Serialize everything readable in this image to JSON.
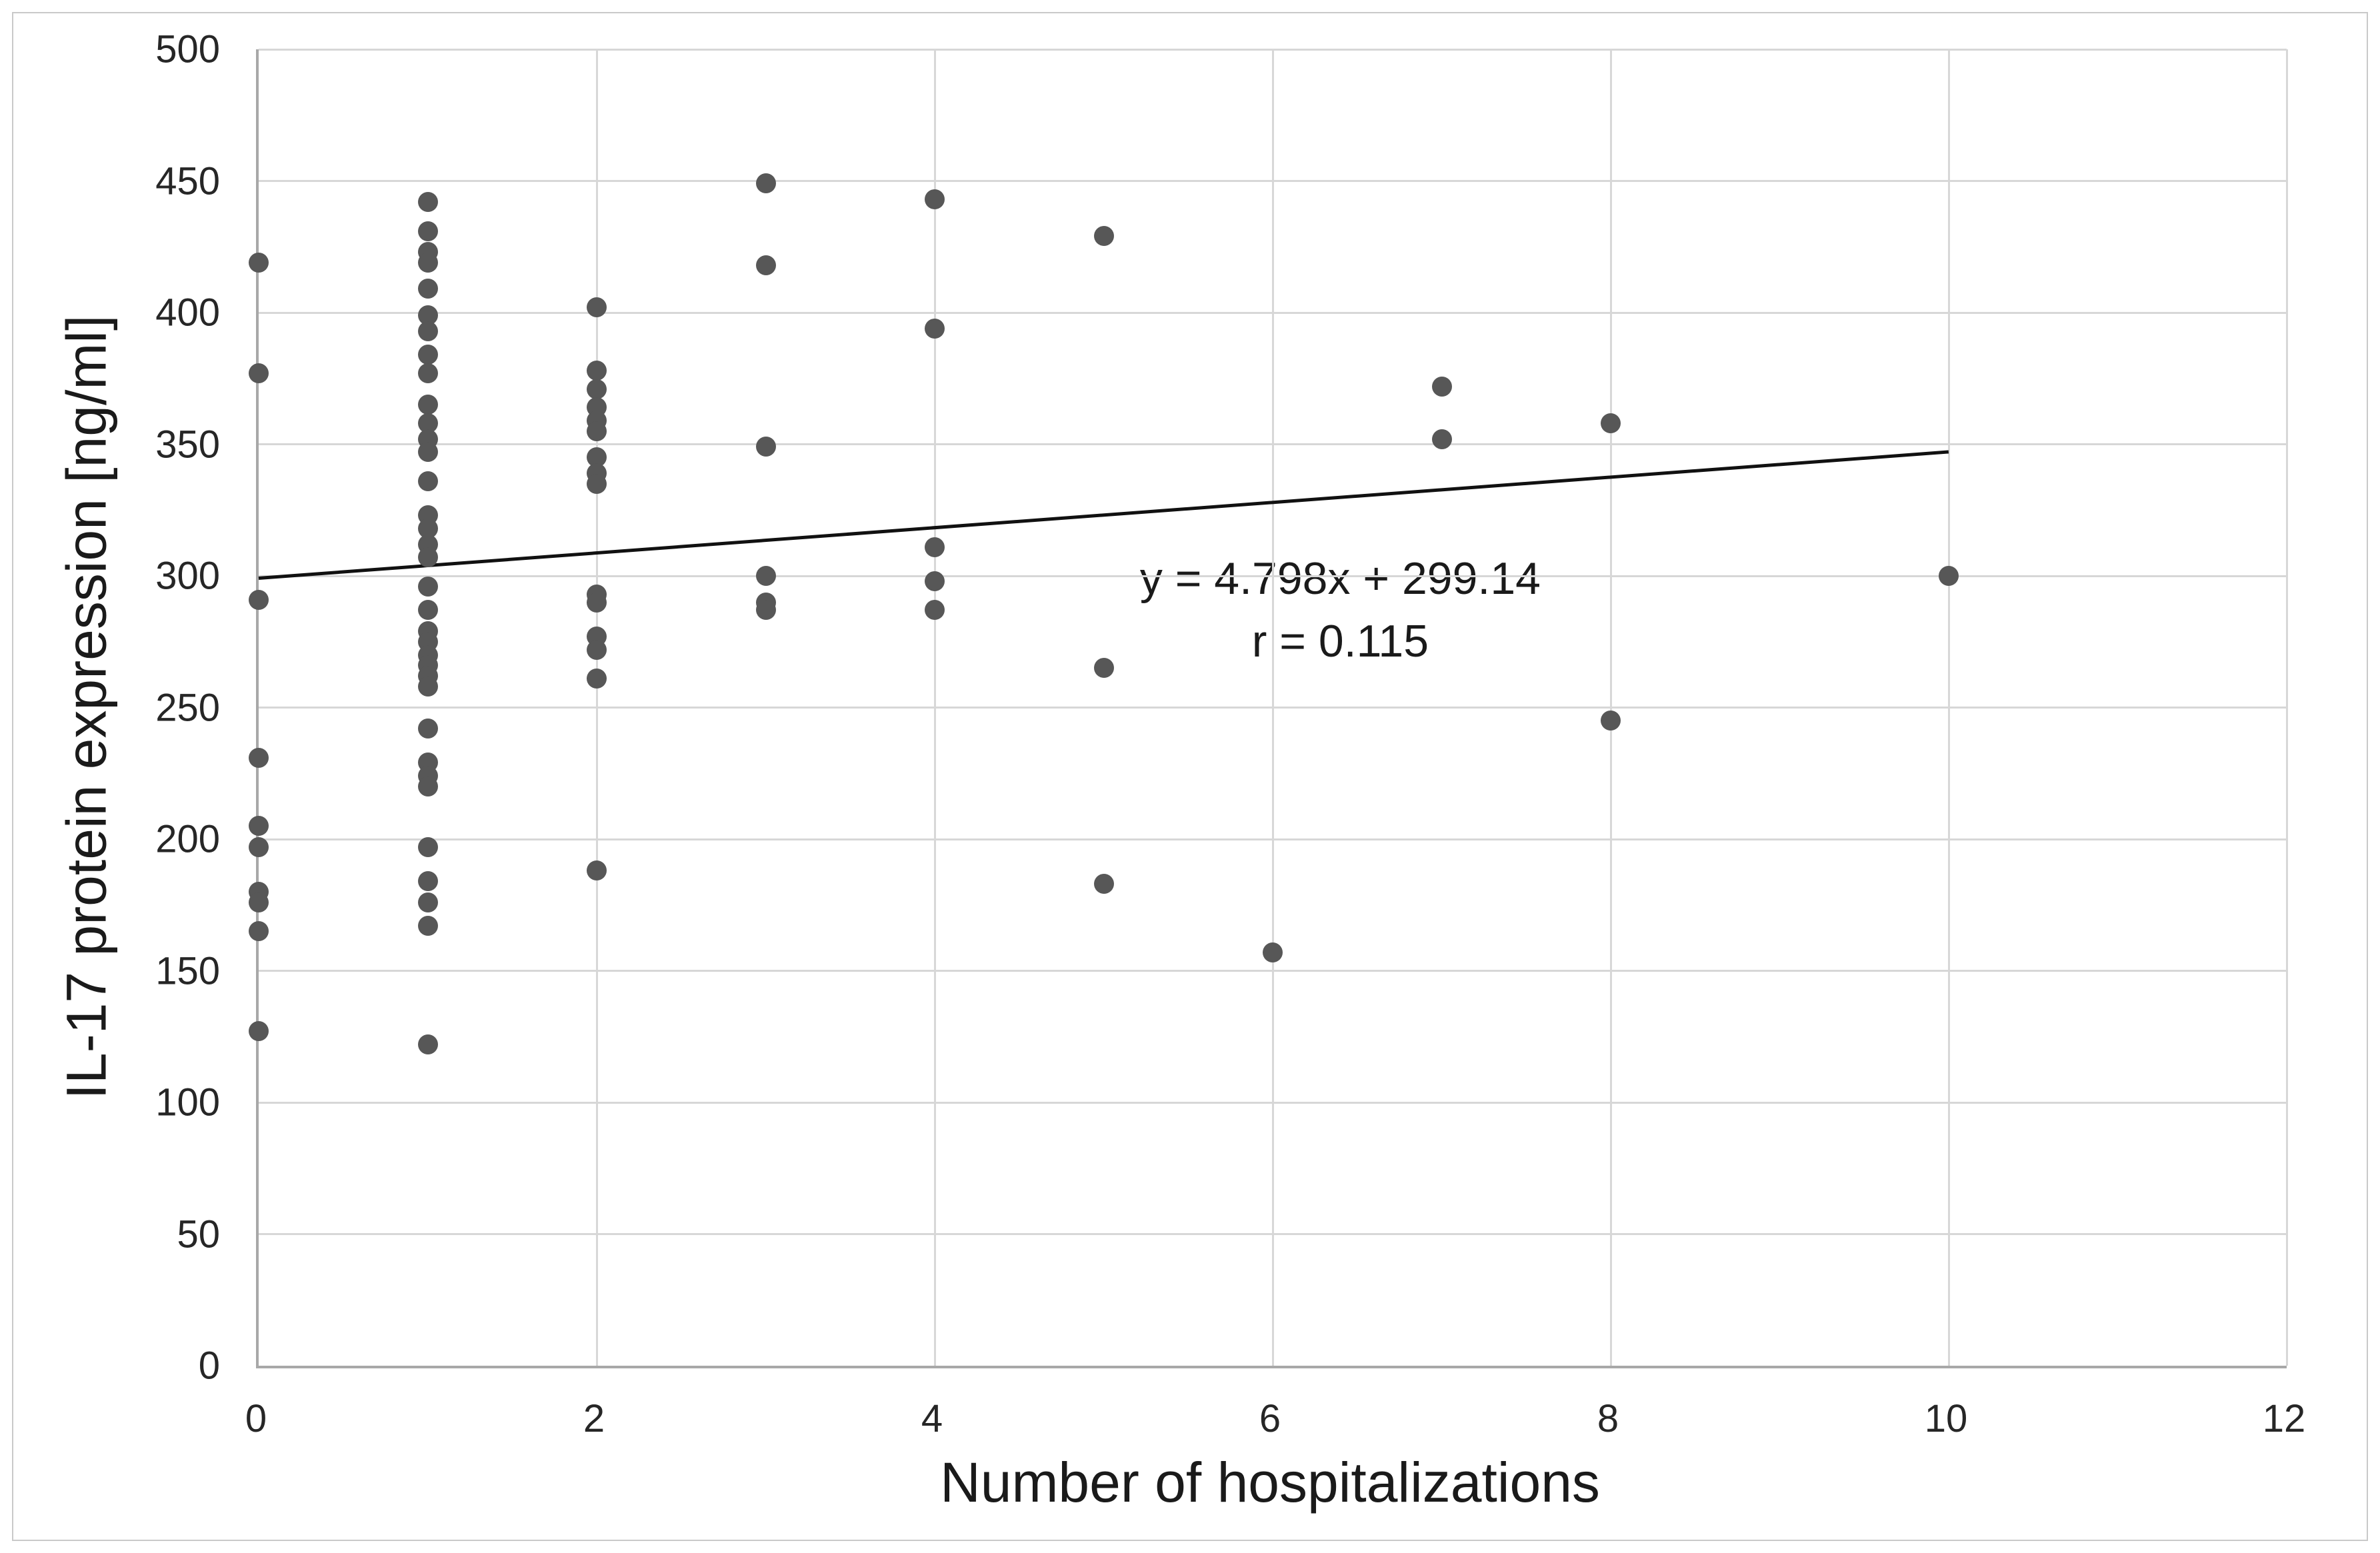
{
  "figure": {
    "background": "#ffffff",
    "border_color": "#c9c9c9",
    "gridline_color": "#d7d7d7",
    "axis_line_color": "#a8a8a8"
  },
  "chart_data": {
    "type": "scatter",
    "title": "",
    "xlabel": "Number of hospitalizations",
    "ylabel": "IL-17 protein expression [ng/ml]",
    "xlim": [
      0,
      12
    ],
    "ylim": [
      0,
      500
    ],
    "x_ticks": [
      0,
      2,
      4,
      6,
      8,
      10,
      12
    ],
    "y_ticks": [
      0,
      50,
      100,
      150,
      200,
      250,
      300,
      350,
      400,
      450,
      500
    ],
    "grid": true,
    "legend": "none",
    "point_color": "#575757",
    "trendline": {
      "slope": 4.798,
      "intercept": 299.14,
      "x_start": 0,
      "x_end": 10,
      "color": "#111111"
    },
    "annotation": {
      "line1": "y = 4.798x + 299.14",
      "line2": "r = 0.115",
      "anchor_x": 6.4,
      "anchor_y": 287
    },
    "points": [
      [
        0,
        419
      ],
      [
        0,
        377
      ],
      [
        0,
        291
      ],
      [
        0,
        231
      ],
      [
        0,
        205
      ],
      [
        0,
        197
      ],
      [
        0,
        180
      ],
      [
        0,
        176
      ],
      [
        0,
        165
      ],
      [
        0,
        127
      ],
      [
        1,
        442
      ],
      [
        1,
        431
      ],
      [
        1,
        423
      ],
      [
        1,
        419
      ],
      [
        1,
        409
      ],
      [
        1,
        399
      ],
      [
        1,
        393
      ],
      [
        1,
        384
      ],
      [
        1,
        377
      ],
      [
        1,
        365
      ],
      [
        1,
        358
      ],
      [
        1,
        352
      ],
      [
        1,
        347
      ],
      [
        1,
        336
      ],
      [
        1,
        323
      ],
      [
        1,
        318
      ],
      [
        1,
        312
      ],
      [
        1,
        307
      ],
      [
        1,
        296
      ],
      [
        1,
        287
      ],
      [
        1,
        279
      ],
      [
        1,
        275
      ],
      [
        1,
        270
      ],
      [
        1,
        266
      ],
      [
        1,
        262
      ],
      [
        1,
        258
      ],
      [
        1,
        242
      ],
      [
        1,
        229
      ],
      [
        1,
        224
      ],
      [
        1,
        220
      ],
      [
        1,
        197
      ],
      [
        1,
        184
      ],
      [
        1,
        176
      ],
      [
        1,
        167
      ],
      [
        1,
        122
      ],
      [
        2,
        402
      ],
      [
        2,
        378
      ],
      [
        2,
        371
      ],
      [
        2,
        364
      ],
      [
        2,
        359
      ],
      [
        2,
        355
      ],
      [
        2,
        345
      ],
      [
        2,
        339
      ],
      [
        2,
        335
      ],
      [
        2,
        293
      ],
      [
        2,
        290
      ],
      [
        2,
        277
      ],
      [
        2,
        272
      ],
      [
        2,
        261
      ],
      [
        2,
        188
      ],
      [
        3,
        449
      ],
      [
        3,
        418
      ],
      [
        3,
        349
      ],
      [
        3,
        300
      ],
      [
        3,
        290
      ],
      [
        3,
        287
      ],
      [
        4,
        443
      ],
      [
        4,
        394
      ],
      [
        4,
        311
      ],
      [
        4,
        298
      ],
      [
        4,
        287
      ],
      [
        5,
        429
      ],
      [
        5,
        265
      ],
      [
        5,
        183
      ],
      [
        6,
        157
      ],
      [
        7,
        372
      ],
      [
        7,
        352
      ],
      [
        8,
        358
      ],
      [
        8,
        245
      ],
      [
        10,
        300
      ]
    ]
  }
}
